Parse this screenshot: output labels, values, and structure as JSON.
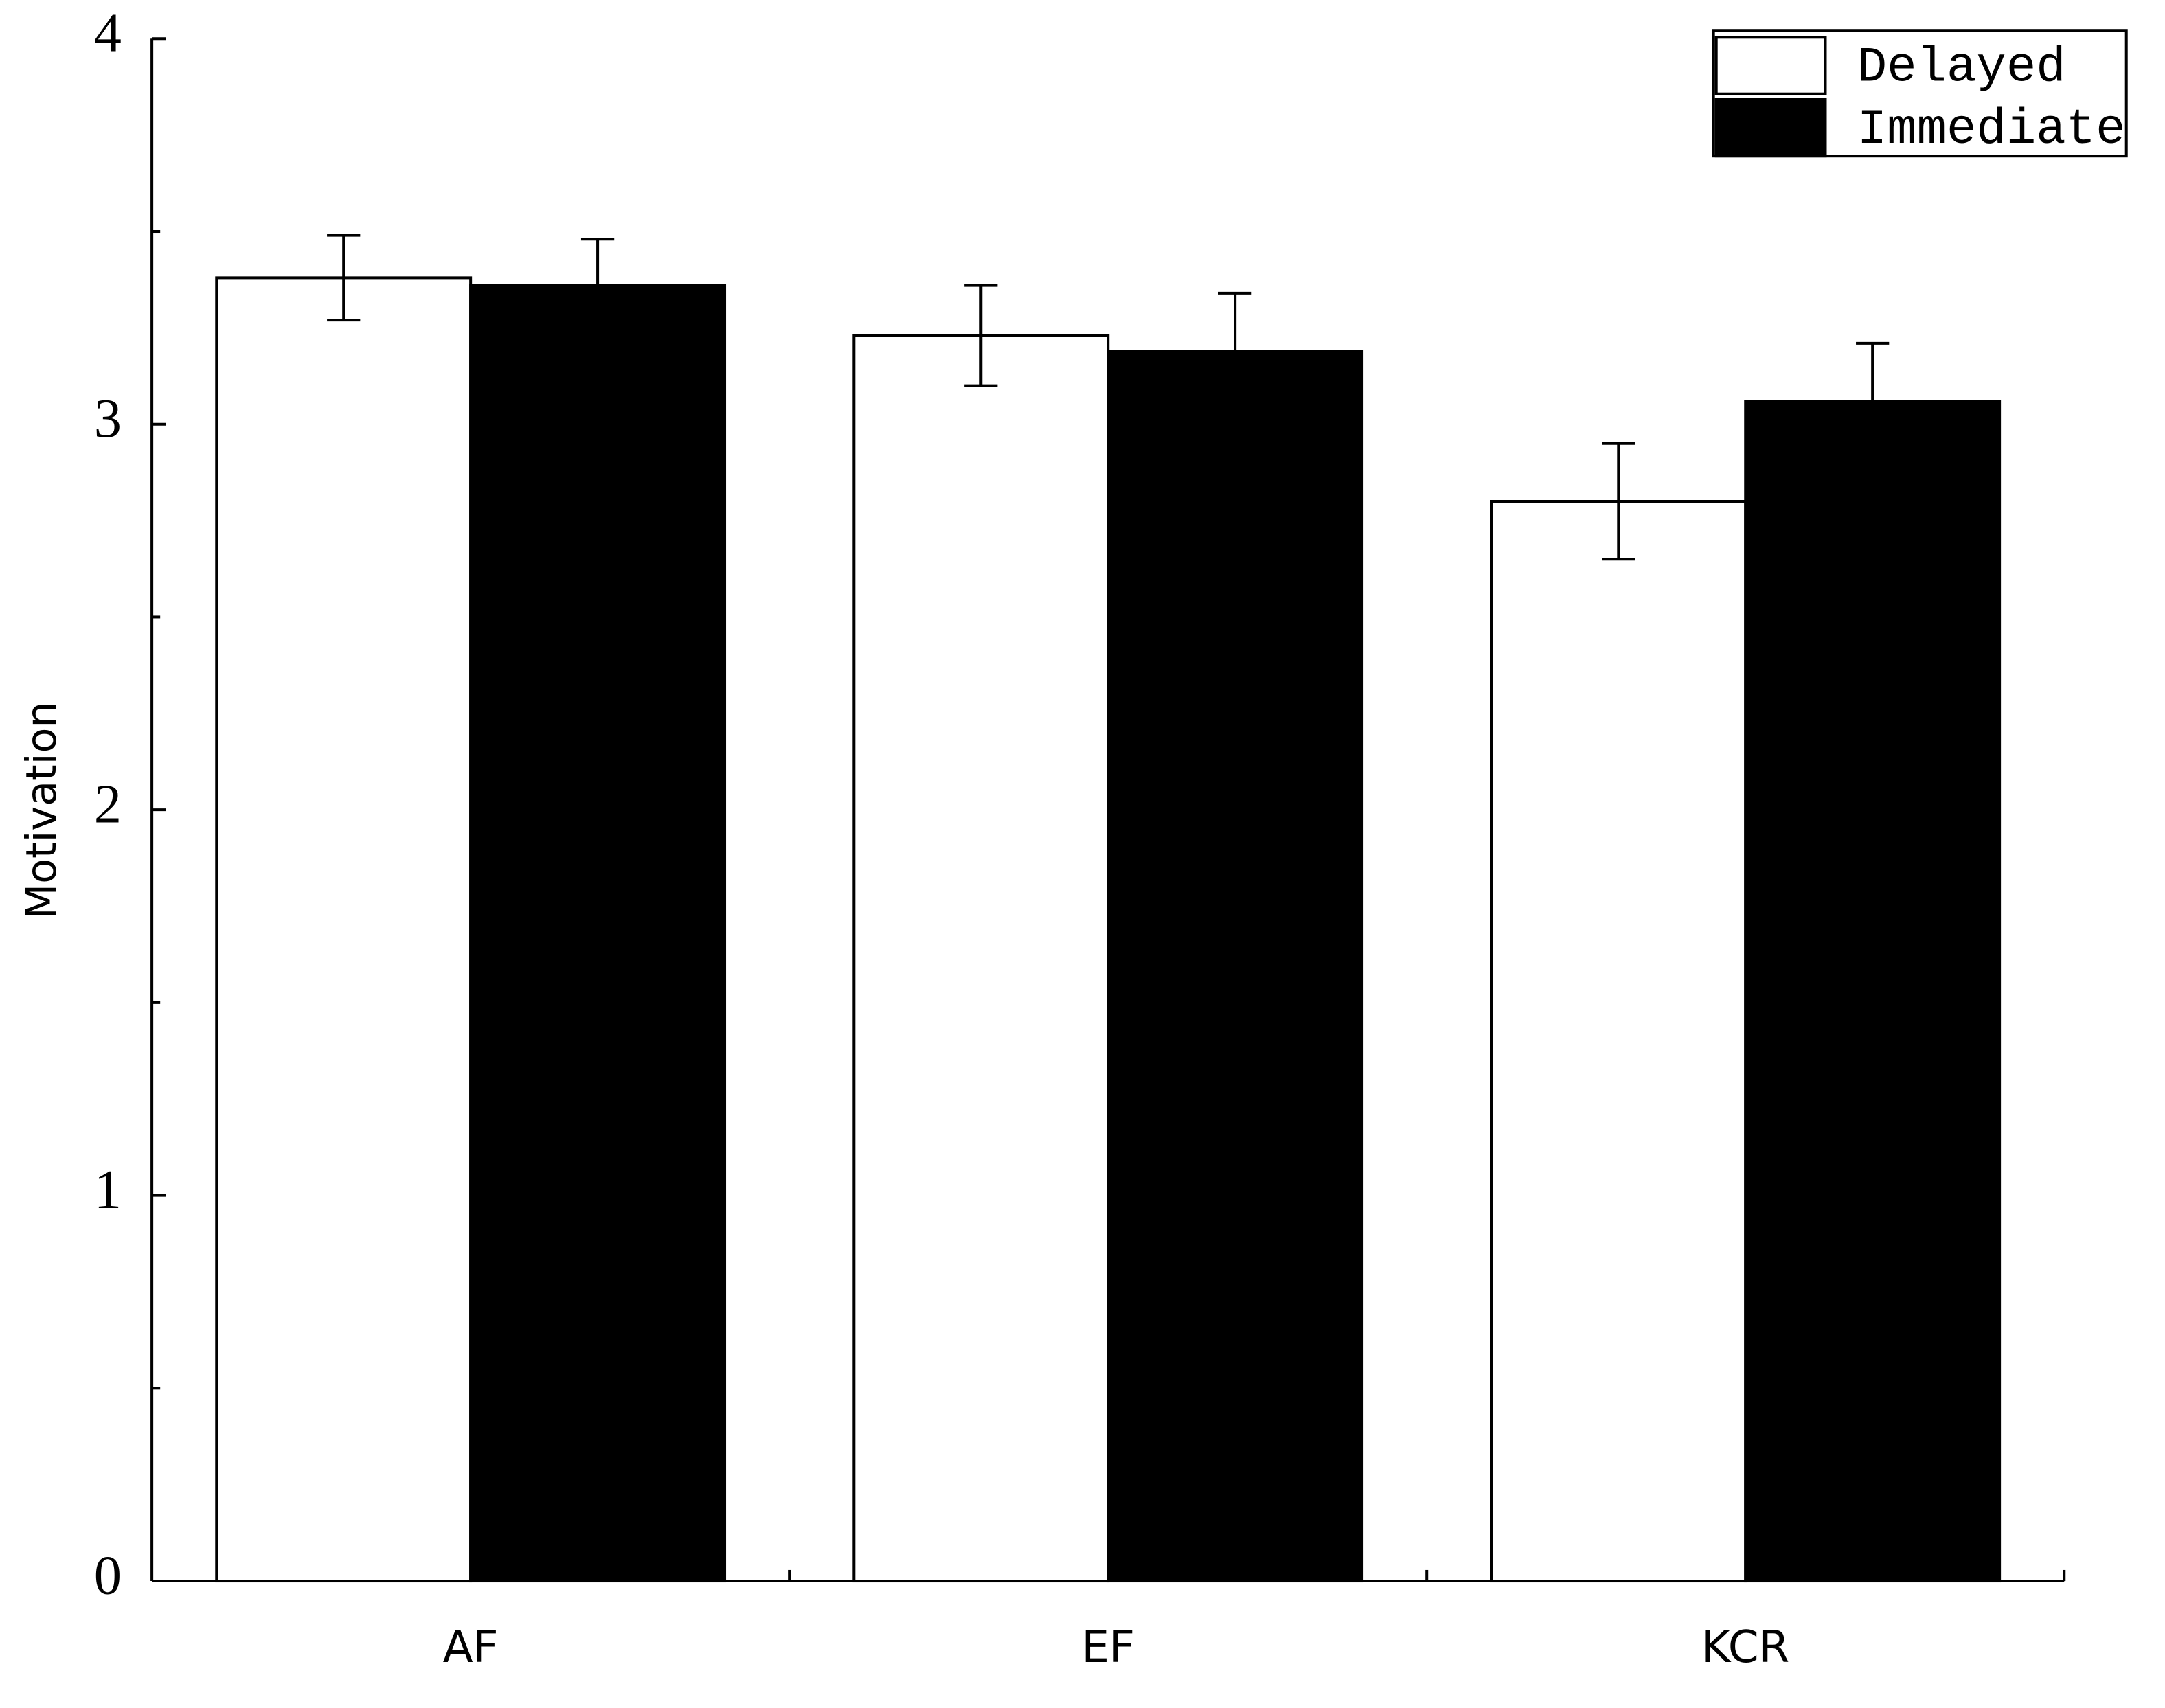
{
  "chart_data": {
    "type": "bar",
    "y_label": "Motivation",
    "categories": [
      "AF",
      "EF",
      "KCR"
    ],
    "series": [
      {
        "name": "Delayed",
        "color": "#ffffff",
        "values": [
          3.38,
          3.23,
          2.8
        ],
        "errors": [
          0.11,
          0.13,
          0.15
        ]
      },
      {
        "name": "Immediate",
        "color": "#000000",
        "values": [
          3.36,
          3.19,
          3.06
        ],
        "errors": [
          0.12,
          0.15,
          0.15
        ]
      }
    ],
    "ylim": [
      0,
      4
    ],
    "yticks": [
      0,
      1,
      2,
      3,
      4
    ],
    "yminorticks": [
      0.5,
      1.5,
      2.5,
      3.5
    ],
    "grid": false,
    "legend": "top-right"
  }
}
